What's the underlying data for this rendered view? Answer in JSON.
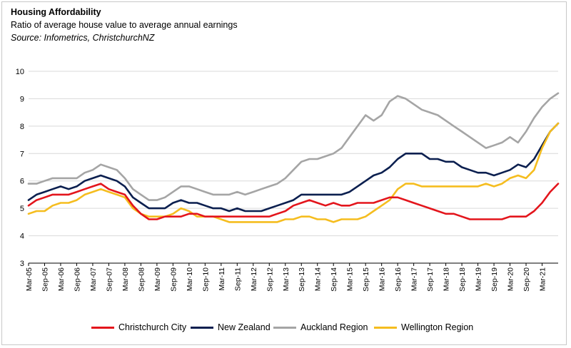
{
  "header": {
    "title": "Housing Affordability",
    "subtitle": "Ratio of average house value to average annual earnings",
    "source": "Source: Infometrics, ChristchurchNZ"
  },
  "colors": {
    "christchurch": "#e3151c",
    "new_zealand": "#0b1f4f",
    "auckland": "#a5a5a5",
    "wellington": "#f5bd1f",
    "grid": "#d9d9d9",
    "axis": "#000000"
  },
  "chart_data": {
    "type": "line",
    "title": "Housing Affordability",
    "subtitle": "Ratio of average house value to average annual earnings",
    "xlabel": "",
    "ylabel": "",
    "ylim": [
      3,
      10
    ],
    "yticks": [
      "3",
      "4",
      "5",
      "6",
      "7",
      "8",
      "9",
      "10"
    ],
    "grid": true,
    "legend_position": "bottom",
    "x_start": "Mar-05",
    "x_end": "Jun-21",
    "x_tick_labels": [
      "Mar-05",
      "Sep-05",
      "Mar-06",
      "Sep-06",
      "Mar-07",
      "Sep-07",
      "Mar-08",
      "Sep-08",
      "Mar-09",
      "Sep-09",
      "Mar-10",
      "Sep-10",
      "Mar-11",
      "Sep-11",
      "Mar-12",
      "Sep-12",
      "Mar-13",
      "Sep-13",
      "Mar-14",
      "Sep-14",
      "Mar-15",
      "Sep-15",
      "Mar-16",
      "Sep-16",
      "Mar-17",
      "Sep-17",
      "Mar-18",
      "Sep-18",
      "Mar-19",
      "Sep-19",
      "Mar-20",
      "Sep-20",
      "Mar-21"
    ],
    "series": [
      {
        "name": "Christchurch City",
        "color": "#e3151c",
        "values": [
          5.1,
          5.3,
          5.4,
          5.5,
          5.5,
          5.5,
          5.6,
          5.7,
          5.8,
          5.9,
          5.7,
          5.6,
          5.5,
          5.1,
          4.8,
          4.6,
          4.6,
          4.7,
          4.7,
          4.7,
          4.8,
          4.8,
          4.7,
          4.7,
          4.7,
          4.7,
          4.7,
          4.7,
          4.7,
          4.7,
          4.7,
          4.8,
          4.9,
          5.1,
          5.2,
          5.3,
          5.2,
          5.1,
          5.2,
          5.1,
          5.1,
          5.2,
          5.2,
          5.2,
          5.3,
          5.4,
          5.4,
          5.3,
          5.2,
          5.1,
          5.0,
          4.9,
          4.8,
          4.8,
          4.7,
          4.6,
          4.6,
          4.6,
          4.6,
          4.6,
          4.7,
          4.7,
          4.7,
          4.9,
          5.2,
          5.6,
          5.9
        ]
      },
      {
        "name": "New Zealand",
        "color": "#0b1f4f",
        "values": [
          5.3,
          5.5,
          5.6,
          5.7,
          5.8,
          5.7,
          5.8,
          6.0,
          6.1,
          6.2,
          6.1,
          6.0,
          5.8,
          5.4,
          5.2,
          5.0,
          5.0,
          5.0,
          5.2,
          5.3,
          5.2,
          5.2,
          5.1,
          5.0,
          5.0,
          4.9,
          5.0,
          4.9,
          4.9,
          4.9,
          5.0,
          5.1,
          5.2,
          5.3,
          5.5,
          5.5,
          5.5,
          5.5,
          5.5,
          5.5,
          5.6,
          5.8,
          6.0,
          6.2,
          6.3,
          6.5,
          6.8,
          7.0,
          7.0,
          7.0,
          6.8,
          6.8,
          6.7,
          6.7,
          6.5,
          6.4,
          6.3,
          6.3,
          6.2,
          6.3,
          6.4,
          6.6,
          6.5,
          6.8,
          7.3,
          7.8,
          8.1
        ]
      },
      {
        "name": "Auckland Region",
        "color": "#a5a5a5",
        "values": [
          5.9,
          5.9,
          6.0,
          6.1,
          6.1,
          6.1,
          6.1,
          6.3,
          6.4,
          6.6,
          6.5,
          6.4,
          6.1,
          5.7,
          5.5,
          5.3,
          5.3,
          5.4,
          5.6,
          5.8,
          5.8,
          5.7,
          5.6,
          5.5,
          5.5,
          5.5,
          5.6,
          5.5,
          5.6,
          5.7,
          5.8,
          5.9,
          6.1,
          6.4,
          6.7,
          6.8,
          6.8,
          6.9,
          7.0,
          7.2,
          7.6,
          8.0,
          8.4,
          8.2,
          8.4,
          8.9,
          9.1,
          9.0,
          8.8,
          8.6,
          8.5,
          8.4,
          8.2,
          8.0,
          7.8,
          7.6,
          7.4,
          7.2,
          7.3,
          7.4,
          7.6,
          7.4,
          7.8,
          8.3,
          8.7,
          9.0,
          9.2
        ]
      },
      {
        "name": "Wellington Region",
        "color": "#f5bd1f",
        "values": [
          4.8,
          4.9,
          4.9,
          5.1,
          5.2,
          5.2,
          5.3,
          5.5,
          5.6,
          5.7,
          5.6,
          5.5,
          5.4,
          5.0,
          4.8,
          4.7,
          4.7,
          4.7,
          4.8,
          5.0,
          4.9,
          4.7,
          4.7,
          4.7,
          4.6,
          4.5,
          4.5,
          4.5,
          4.5,
          4.5,
          4.5,
          4.5,
          4.6,
          4.6,
          4.7,
          4.7,
          4.6,
          4.6,
          4.5,
          4.6,
          4.6,
          4.6,
          4.7,
          4.9,
          5.1,
          5.3,
          5.7,
          5.9,
          5.9,
          5.8,
          5.8,
          5.8,
          5.8,
          5.8,
          5.8,
          5.8,
          5.8,
          5.9,
          5.8,
          5.9,
          6.1,
          6.2,
          6.1,
          6.4,
          7.2,
          7.8,
          8.1
        ]
      }
    ]
  }
}
